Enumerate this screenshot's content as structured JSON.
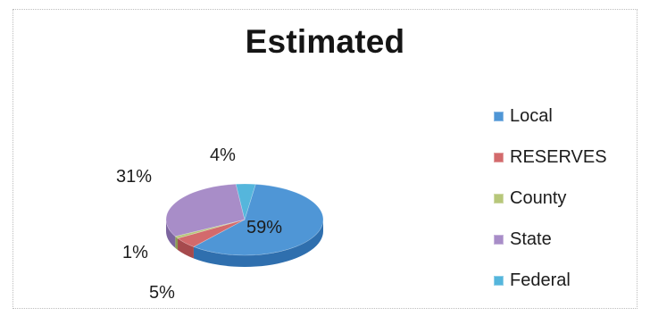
{
  "chart_data": {
    "type": "pie",
    "title": "Estimated",
    "categories": [
      "Local",
      "RESERVES",
      "County",
      "State",
      "Federal"
    ],
    "values": [
      59,
      5,
      1,
      31,
      4
    ],
    "data_labels": [
      "59%",
      "5%",
      "1%",
      "31%",
      "4%"
    ],
    "legend_position": "right",
    "colors": [
      "#4f96d6",
      "#d36a6c",
      "#b7c77a",
      "#a88dc8",
      "#55b6dc"
    ],
    "side_colors": [
      "#2f6fae",
      "#a64a4d",
      "#8c9c52",
      "#7c659f",
      "#3b8db2"
    ]
  }
}
